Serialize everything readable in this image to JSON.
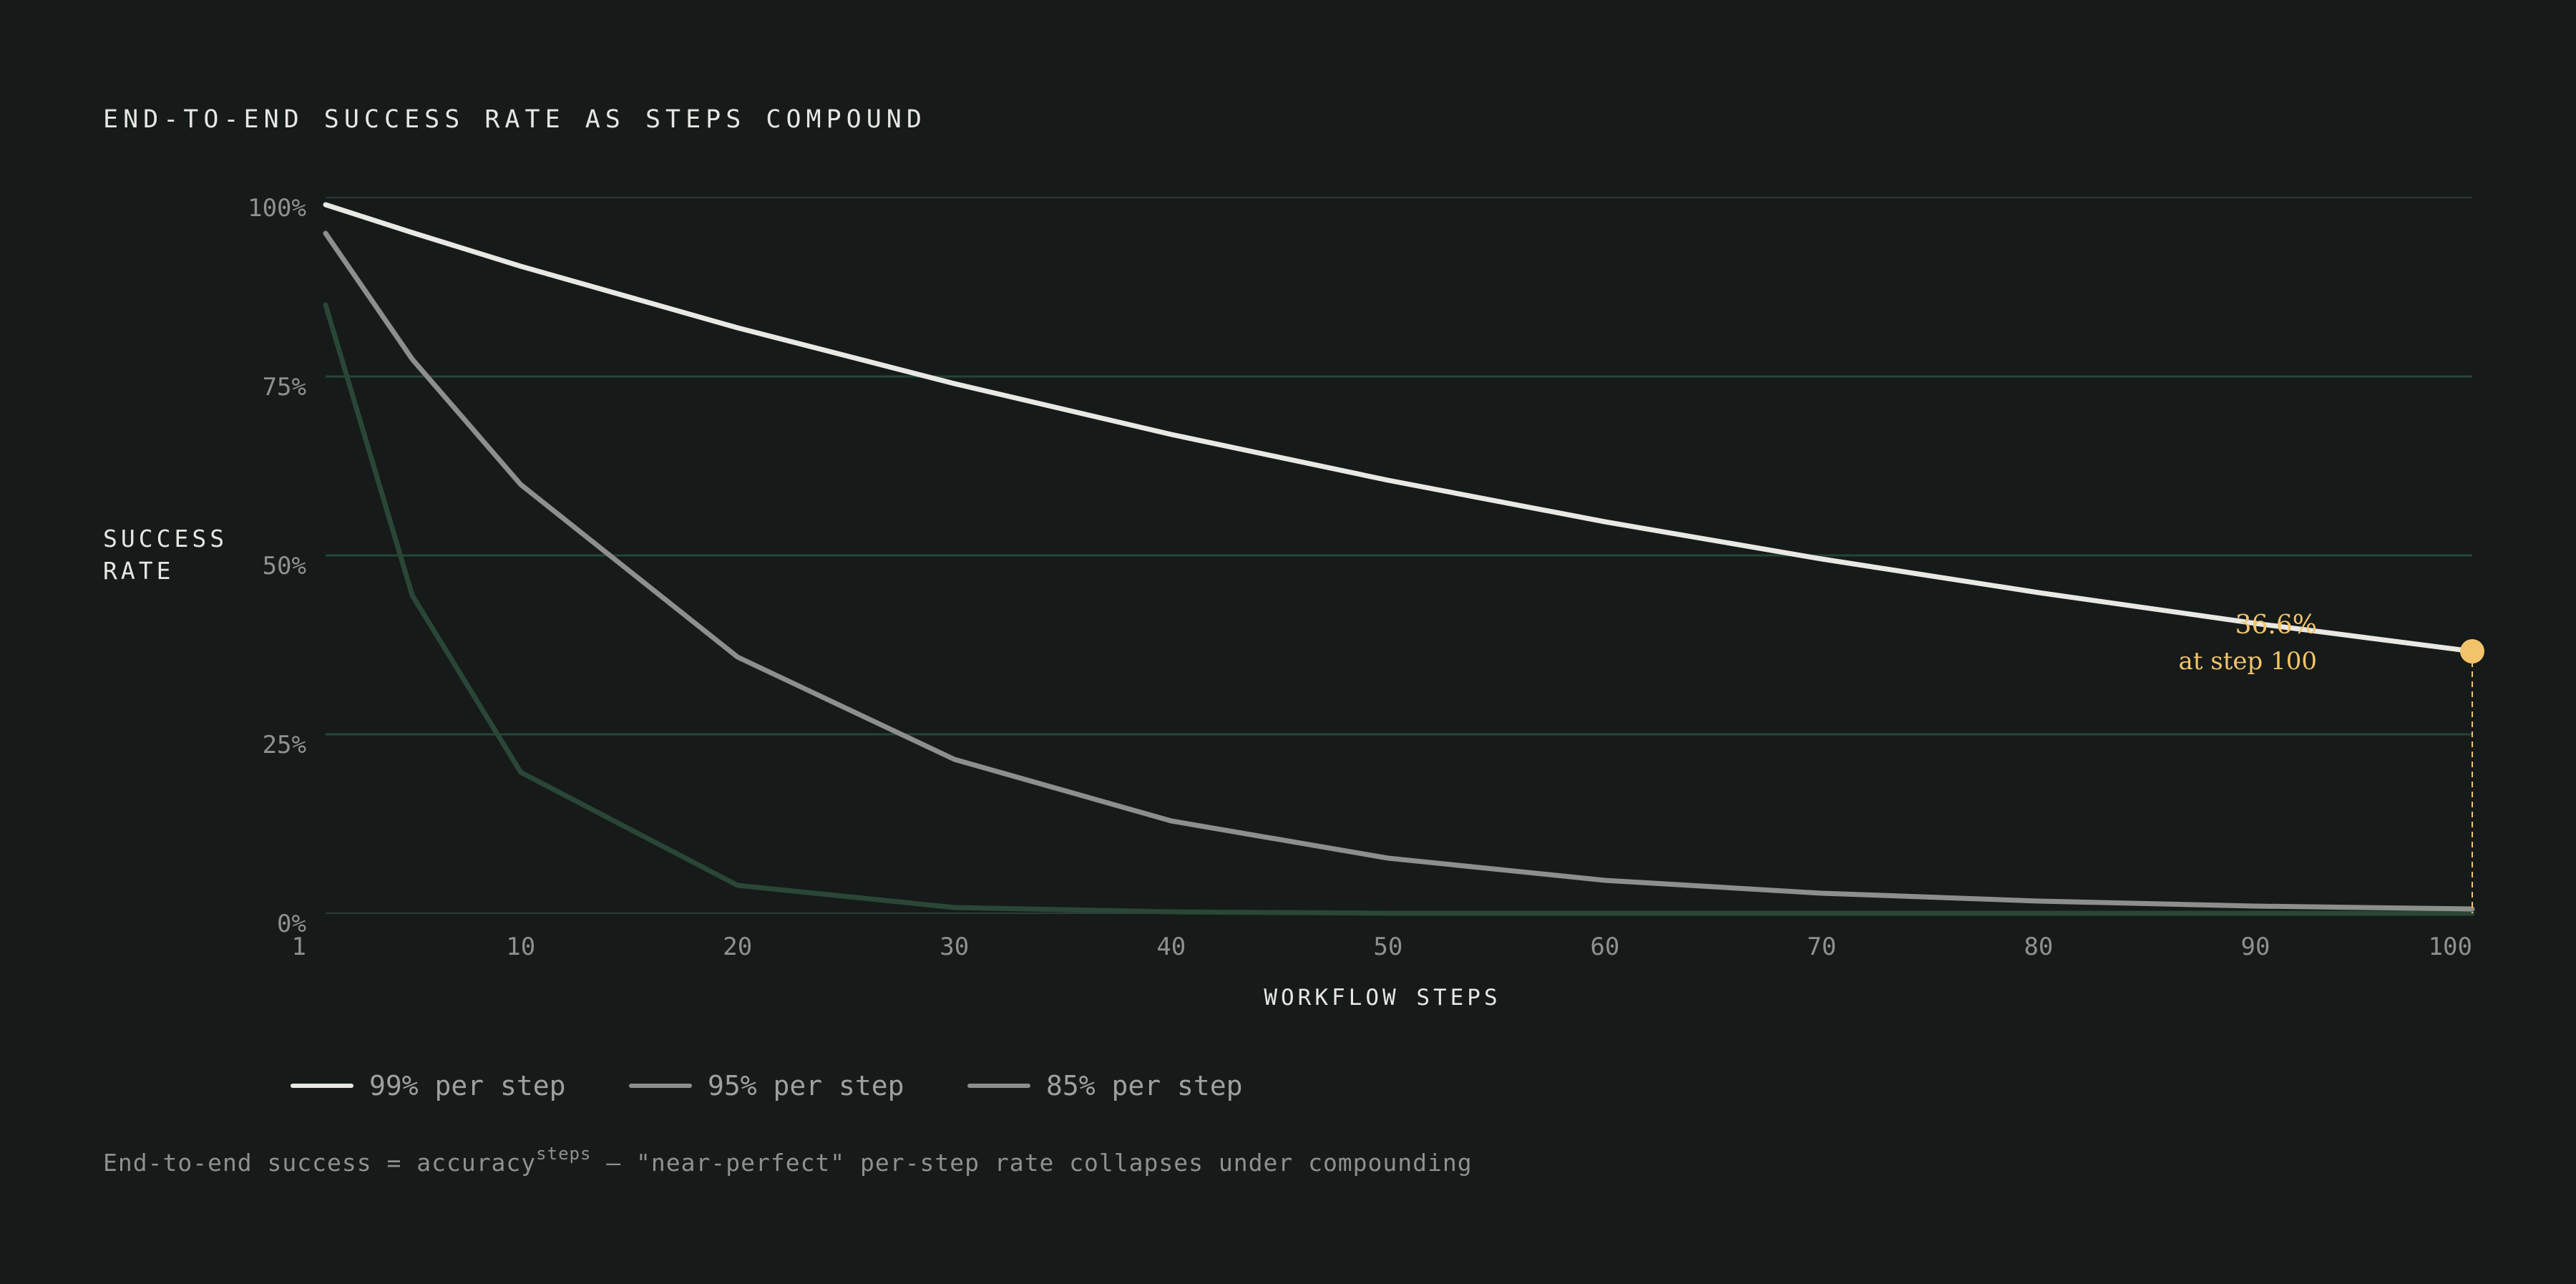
{
  "chart_data": {
    "type": "line",
    "title": "END-TO-END SUCCESS RATE AS STEPS COMPOUND",
    "ylabel_lines": [
      "SUCCESS",
      "RATE"
    ],
    "xlabel": "WORKFLOW STEPS",
    "xlim": [
      1,
      100
    ],
    "ylim": [
      0,
      100
    ],
    "x_ticks": [
      "1",
      "10",
      "20",
      "30",
      "40",
      "50",
      "60",
      "70",
      "80",
      "90",
      "100"
    ],
    "y_ticks": [
      "100%",
      "75%",
      "50%",
      "25%",
      "0%"
    ],
    "grid": true,
    "legend_position": "bottom-left",
    "x": [
      1,
      5,
      10,
      20,
      30,
      40,
      50,
      60,
      70,
      80,
      90,
      100
    ],
    "series": [
      {
        "name": "99% per step",
        "color": "#e8e8e4",
        "values": [
          99.0,
          95.1,
          90.4,
          81.8,
          74.0,
          66.9,
          60.5,
          54.7,
          49.5,
          44.8,
          40.5,
          36.6
        ]
      },
      {
        "name": "95% per step",
        "color": "#8c8f8b",
        "values": [
          95.0,
          77.4,
          59.9,
          35.8,
          21.5,
          12.9,
          7.7,
          4.6,
          2.8,
          1.7,
          1.0,
          0.6
        ]
      },
      {
        "name": "85% per step",
        "color": "#2a4637",
        "values": [
          85.0,
          44.4,
          19.7,
          3.9,
          0.8,
          0.2,
          0.0,
          0.0,
          0.0,
          0.0,
          0.0,
          0.0
        ]
      }
    ],
    "annotation": {
      "x": 100,
      "y": 36.6,
      "value_label": "36.6%",
      "sub_label": "at step 100",
      "color": "#f2c46a"
    },
    "footnote": {
      "prefix": "End-to-end success = accuracy",
      "superscript": "steps",
      "suffix": " — \"near-perfect\" per-step rate collapses under compounding"
    }
  }
}
